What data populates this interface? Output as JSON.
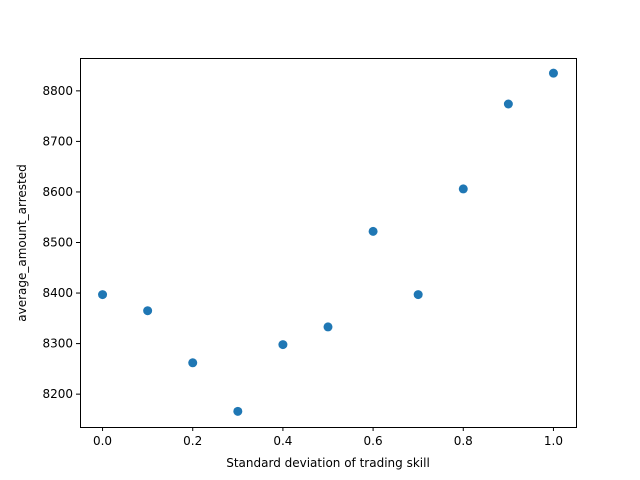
{
  "chart_data": {
    "type": "scatter",
    "title": "",
    "xlabel": "Standard deviation of trading skill",
    "ylabel": "average_amount_arrested",
    "xlim": [
      -0.05,
      1.05
    ],
    "ylim": [
      8135,
      8865
    ],
    "x_ticks": [
      0.0,
      0.2,
      0.4,
      0.6,
      0.8,
      1.0
    ],
    "x_tick_labels": [
      "0.0",
      "0.2",
      "0.4",
      "0.6",
      "0.8",
      "1.0"
    ],
    "y_ticks": [
      8200,
      8300,
      8400,
      8500,
      8600,
      8700,
      8800
    ],
    "y_tick_labels": [
      "8200",
      "8300",
      "8400",
      "8500",
      "8600",
      "8700",
      "8800"
    ],
    "grid": false,
    "marker_color": "#1f77b4",
    "points": [
      {
        "x": 0.0,
        "y": 8397
      },
      {
        "x": 0.1,
        "y": 8365
      },
      {
        "x": 0.2,
        "y": 8262
      },
      {
        "x": 0.3,
        "y": 8166
      },
      {
        "x": 0.4,
        "y": 8298
      },
      {
        "x": 0.5,
        "y": 8333
      },
      {
        "x": 0.6,
        "y": 8522
      },
      {
        "x": 0.7,
        "y": 8397
      },
      {
        "x": 0.8,
        "y": 8606
      },
      {
        "x": 0.9,
        "y": 8774
      },
      {
        "x": 1.0,
        "y": 8835
      }
    ]
  }
}
